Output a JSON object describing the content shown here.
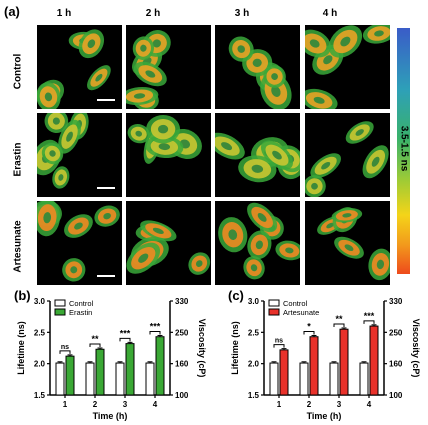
{
  "panel_a": {
    "letter": "(a)",
    "columns": [
      "1 h",
      "2 h",
      "3 h",
      "4 h"
    ],
    "rows": [
      "Control",
      "Erastin",
      "Artesunate"
    ],
    "colorbar_label": "3.5-1.5 ns",
    "colorbar_colors": [
      "#3a5cc8",
      "#2ea0b8",
      "#39b26a",
      "#9fcb35",
      "#f4d419",
      "#f29a1c",
      "#ee4a1c"
    ]
  },
  "chart_data": [
    {
      "panel_letter": "(b)",
      "type": "bar",
      "categories": [
        "1",
        "2",
        "3",
        "4"
      ],
      "xlabel": "Time (h)",
      "ylabel": "Lifetime (ns)",
      "y2label": "Viscosity (cP)",
      "ylim": [
        1.5,
        3.0
      ],
      "yticks": [
        "1.5",
        "2.0",
        "2.5",
        "3.0"
      ],
      "y2ticks": [
        "100",
        "160",
        "250",
        "330"
      ],
      "legend_position": "top-left",
      "series": [
        {
          "name": "Control",
          "color": "#ffffff",
          "values": [
            2.01,
            2.01,
            2.01,
            2.01
          ],
          "errors": [
            0.02,
            0.02,
            0.02,
            0.02
          ]
        },
        {
          "name": "Erastin",
          "color": "#3aa835",
          "values": [
            2.12,
            2.23,
            2.32,
            2.43
          ],
          "errors": [
            0.02,
            0.02,
            0.02,
            0.02
          ]
        }
      ],
      "significance": [
        "ns",
        "**",
        "***",
        "***"
      ]
    },
    {
      "panel_letter": "(c)",
      "type": "bar",
      "categories": [
        "1",
        "2",
        "3",
        "4"
      ],
      "xlabel": "Time (h)",
      "ylabel": "Lifetime (ns)",
      "y2label": "Viscosity (cP)",
      "ylim": [
        1.5,
        3.0
      ],
      "yticks": [
        "1.5",
        "2.0",
        "2.5",
        "3.0"
      ],
      "y2ticks": [
        "100",
        "160",
        "250",
        "330"
      ],
      "legend_position": "top-left",
      "series": [
        {
          "name": "Control",
          "color": "#ffffff",
          "values": [
            2.01,
            2.01,
            2.01,
            2.01
          ],
          "errors": [
            0.02,
            0.02,
            0.02,
            0.02
          ]
        },
        {
          "name": "Artesunate",
          "color": "#e8312a",
          "values": [
            2.22,
            2.43,
            2.55,
            2.6
          ],
          "errors": [
            0.02,
            0.02,
            0.02,
            0.02
          ]
        }
      ],
      "significance": [
        "ns",
        "*",
        "**",
        "***"
      ]
    }
  ]
}
